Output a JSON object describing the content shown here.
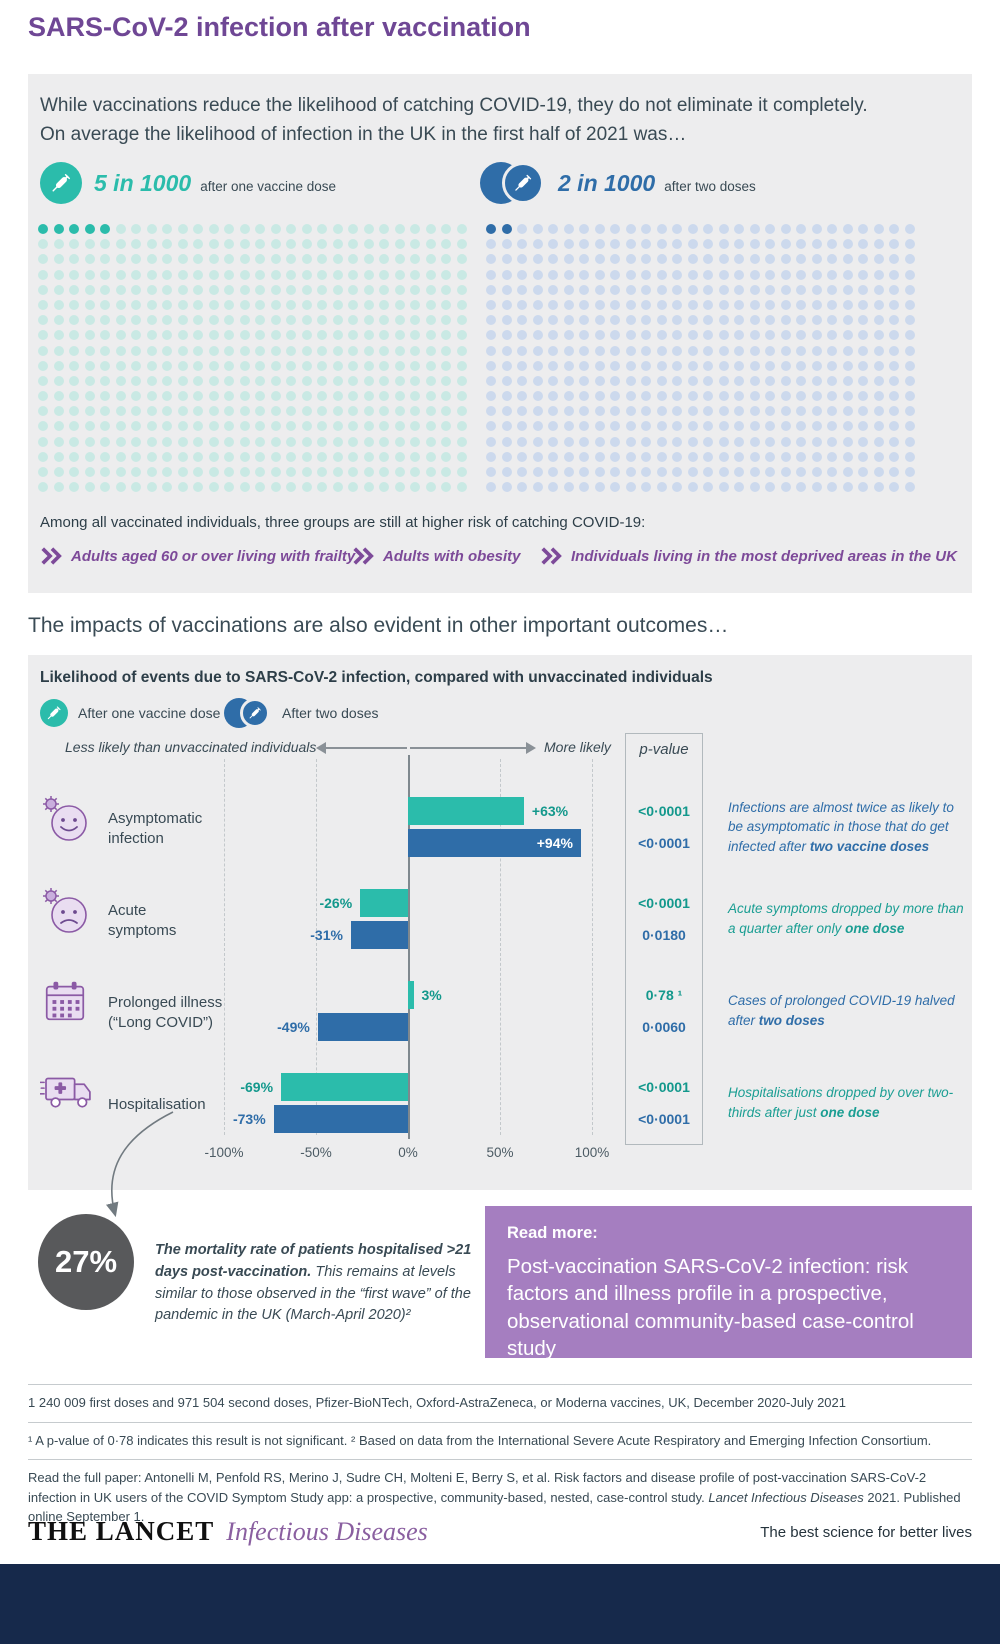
{
  "header": {
    "title": "SARS-CoV-2 infection after vaccination"
  },
  "intro": {
    "line1": "While vaccinations reduce the likelihood of catching COVID-19, they do not eliminate it completely.",
    "line2": "On average the likelihood of infection in the UK in the first half of 2021 was…"
  },
  "stats": [
    {
      "value": "5 in 1000",
      "caption": "after one vaccine dose",
      "highlighted": 5,
      "accent": "#2bbcab",
      "dot_color": "#c9e9e4",
      "dot_highlight": "#2bbcab"
    },
    {
      "value": "2 in 1000",
      "caption": "after two doses",
      "highlighted": 2,
      "accent": "#2f6da8",
      "dot_color": "#ccd9ed",
      "dot_highlight": "#2f6da8"
    }
  ],
  "risk": {
    "intro": "Among all vaccinated individuals, three groups are still at higher risk of catching COVID-19:",
    "items": [
      "Adults aged 60 or over living with frailty",
      "Adults with obesity",
      "Individuals living in the most deprived areas in the UK"
    ]
  },
  "outcomes_heading": "The impacts of vaccinations are also evident in other important outcomes…",
  "chart_data": {
    "type": "bar",
    "orientation": "horizontal",
    "title": "Likelihood of events due to SARS-CoV-2 infection, compared with unvaccinated individuals",
    "legend": [
      {
        "label": "After one vaccine dose",
        "color": "#2bbcab"
      },
      {
        "label": "After two doses",
        "color": "#2f6da8"
      }
    ],
    "axis": {
      "left_label": "Less likely than unvaccinated individuals",
      "right_label": "More likely",
      "pvalue_label": "p-value",
      "ticks": [
        "-100%",
        "-50%",
        "0%",
        "50%",
        "100%"
      ],
      "tick_values": [
        -100,
        -50,
        0,
        50,
        100
      ],
      "xlim": [
        -100,
        100
      ],
      "grid": "dashed"
    },
    "categories": [
      "Asymptomatic infection",
      "Acute symptoms",
      "Prolonged illness (“Long COVID”)",
      "Hospitalisation"
    ],
    "rows": [
      {
        "label_lines": [
          "Asymptomatic",
          "infection"
        ],
        "icon": "smiley-face-virus-icon",
        "one_dose": {
          "value": 63,
          "display": "+63%",
          "p": "<0·0001"
        },
        "two_dose": {
          "value": 94,
          "display": "+94%",
          "p": "<0·0001"
        },
        "note": {
          "text": "Infections are almost twice as likely to be asymptomatic in those that do get infected after ",
          "emphasis": "two vaccine doses",
          "color": "#2f6da8"
        }
      },
      {
        "label_lines": [
          "Acute",
          "symptoms"
        ],
        "icon": "sad-face-virus-icon",
        "one_dose": {
          "value": -26,
          "display": "-26%",
          "p": "<0·0001"
        },
        "two_dose": {
          "value": -31,
          "display": "-31%",
          "p": "0·0180"
        },
        "note": {
          "text": "Acute symptoms dropped by more than a quarter after only ",
          "emphasis": "one dose",
          "color": "#1b9e93"
        }
      },
      {
        "label_lines": [
          "Prolonged illness",
          "(“Long COVID”)"
        ],
        "icon": "calendar-icon",
        "one_dose": {
          "value": 3,
          "display": "3%",
          "p": "0·78 ¹"
        },
        "two_dose": {
          "value": -49,
          "display": "-49%",
          "p": "0·0060"
        },
        "note": {
          "text": "Cases of prolonged COVID-19 halved after ",
          "emphasis": "two doses",
          "color": "#2f6da8"
        }
      },
      {
        "label_lines": [
          "Hospitalisation"
        ],
        "icon": "ambulance-icon",
        "one_dose": {
          "value": -69,
          "display": "-69%",
          "p": "<0·0001"
        },
        "two_dose": {
          "value": -73,
          "display": "-73%",
          "p": "<0·0001"
        },
        "note": {
          "text": "Hospitalisations dropped by over two-thirds after just ",
          "emphasis": "one dose",
          "color": "#1b9e93"
        }
      }
    ]
  },
  "mortality": {
    "value": "27%",
    "bold_text": "The mortality rate of patients hospitalised >21 days post-vaccination.",
    "text": " This remains at levels similar to those observed in the “first wave” of the pandemic in the UK (March-April 2020)²"
  },
  "read_more": {
    "label": "Read more:",
    "title": "Post-vaccination SARS-CoV-2 infection: risk factors and illness profile in a prospective, observational community-based case-control study"
  },
  "footnotes": [
    "1 240 009 first doses and 971 504 second doses, Pfizer-BioNTech, Oxford-AstraZeneca, or Moderna vaccines, UK, December 2020-July 2021",
    "¹ A p-value of 0·78 indicates this result is not significant. ² Based on data from the International Severe Acute Respiratory and Emerging Infection Consortium.",
    {
      "prefix": "Read the full paper: Antonelli M, Penfold RS, Merino J, Sudre CH, Molteni E, Berry S, et al. Risk factors and disease profile of post-vaccination SARS-CoV-2 infection in UK users of the COVID Symptom Study app: a prospective, community-based, nested, case-control study. ",
      "italic": "Lancet Infectious Diseases",
      "suffix": " 2021. Published online September 1."
    }
  ],
  "footer": {
    "brand": "THE LANCET",
    "brand_sub": "Infectious Diseases",
    "tagline": "The best science for better lives"
  },
  "colors": {
    "accent_purple": "#6f4795",
    "teal": "#2bbcab",
    "blue": "#2f6da8",
    "panel_gray": "#ededee",
    "readmore_purple": "#a57ec0",
    "mortality_gray": "#58595b",
    "footer_navy": "#16294b"
  }
}
